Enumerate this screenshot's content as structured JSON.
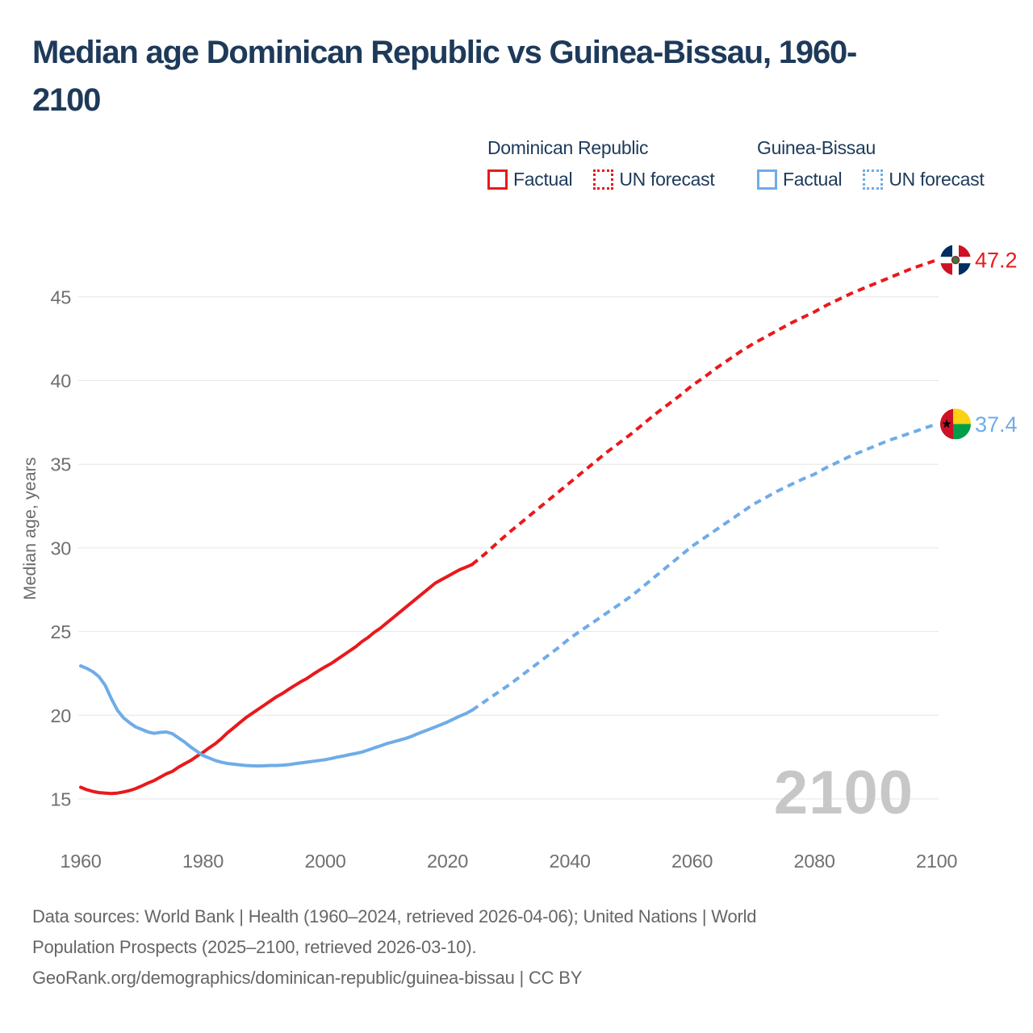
{
  "title": {
    "full": "Median age Dominican Republic vs Guinea-Bissau, 1960-2100",
    "lines": [
      "Median age Dominican Republic vs Guinea-Bissau, 1960-",
      "2100"
    ]
  },
  "legend": {
    "groups": [
      {
        "title": "Dominican Republic",
        "color": "#e8191c",
        "factual_label": "Factual",
        "forecast_label": "UN forecast"
      },
      {
        "title": "Guinea-Bissau",
        "color": "#6face8",
        "factual_label": "Factual",
        "forecast_label": "UN forecast"
      }
    ]
  },
  "chart_data": {
    "type": "line",
    "title": "Median age Dominican Republic vs Guinea-Bissau, 1960-2100",
    "xlabel": "",
    "ylabel": "Median age, years",
    "watermark": "2100",
    "xlim": [
      1960,
      2100
    ],
    "ylim": [
      15,
      45
    ],
    "xticks": [
      1960,
      1980,
      2000,
      2020,
      2040,
      2060,
      2080,
      2100
    ],
    "yticks": [
      15,
      20,
      25,
      30,
      35,
      40,
      45
    ],
    "grid": "horizontal",
    "legend_position": "top-right",
    "series": [
      {
        "id": "dominican-republic-factual",
        "name": "Dominican Republic — Factual",
        "color": "#e8191c",
        "dash": "solid",
        "points": [
          [
            1960,
            15.7
          ],
          [
            1961,
            15.55
          ],
          [
            1962,
            15.45
          ],
          [
            1963,
            15.38
          ],
          [
            1964,
            15.35
          ],
          [
            1965,
            15.33
          ],
          [
            1966,
            15.35
          ],
          [
            1967,
            15.42
          ],
          [
            1968,
            15.5
          ],
          [
            1969,
            15.62
          ],
          [
            1970,
            15.78
          ],
          [
            1971,
            15.95
          ],
          [
            1972,
            16.1
          ],
          [
            1973,
            16.3
          ],
          [
            1974,
            16.5
          ],
          [
            1975,
            16.65
          ],
          [
            1976,
            16.9
          ],
          [
            1977,
            17.1
          ],
          [
            1978,
            17.3
          ],
          [
            1979,
            17.55
          ],
          [
            1980,
            17.78
          ],
          [
            1981,
            18.05
          ],
          [
            1982,
            18.3
          ],
          [
            1983,
            18.6
          ],
          [
            1984,
            18.95
          ],
          [
            1985,
            19.25
          ],
          [
            1986,
            19.55
          ],
          [
            1987,
            19.85
          ],
          [
            1988,
            20.1
          ],
          [
            1989,
            20.35
          ],
          [
            1990,
            20.6
          ],
          [
            1991,
            20.85
          ],
          [
            1992,
            21.1
          ],
          [
            1993,
            21.3
          ],
          [
            1994,
            21.55
          ],
          [
            1995,
            21.78
          ],
          [
            1996,
            22
          ],
          [
            1997,
            22.2
          ],
          [
            1998,
            22.45
          ],
          [
            1999,
            22.68
          ],
          [
            2000,
            22.9
          ],
          [
            2001,
            23.1
          ],
          [
            2002,
            23.35
          ],
          [
            2003,
            23.6
          ],
          [
            2004,
            23.85
          ],
          [
            2005,
            24.1
          ],
          [
            2006,
            24.4
          ],
          [
            2007,
            24.65
          ],
          [
            2008,
            24.95
          ],
          [
            2009,
            25.2
          ],
          [
            2010,
            25.5
          ],
          [
            2011,
            25.8
          ],
          [
            2012,
            26.1
          ],
          [
            2013,
            26.4
          ],
          [
            2014,
            26.7
          ],
          [
            2015,
            27
          ],
          [
            2016,
            27.3
          ],
          [
            2017,
            27.6
          ],
          [
            2018,
            27.9
          ],
          [
            2019,
            28.1
          ],
          [
            2020,
            28.3
          ],
          [
            2021,
            28.5
          ],
          [
            2022,
            28.7
          ],
          [
            2023,
            28.85
          ],
          [
            2024,
            29
          ]
        ]
      },
      {
        "id": "dominican-republic-forecast",
        "name": "Dominican Republic — UN forecast",
        "color": "#e8191c",
        "dash": "dashed",
        "points": [
          [
            2024,
            29
          ],
          [
            2026,
            29.6
          ],
          [
            2028,
            30.25
          ],
          [
            2030,
            30.9
          ],
          [
            2032,
            31.5
          ],
          [
            2034,
            32.1
          ],
          [
            2036,
            32.7
          ],
          [
            2038,
            33.3
          ],
          [
            2040,
            33.9
          ],
          [
            2042,
            34.5
          ],
          [
            2044,
            35.1
          ],
          [
            2046,
            35.7
          ],
          [
            2048,
            36.25
          ],
          [
            2050,
            36.8
          ],
          [
            2052,
            37.4
          ],
          [
            2054,
            38
          ],
          [
            2056,
            38.55
          ],
          [
            2058,
            39.1
          ],
          [
            2060,
            39.7
          ],
          [
            2062,
            40.2
          ],
          [
            2064,
            40.75
          ],
          [
            2066,
            41.25
          ],
          [
            2068,
            41.75
          ],
          [
            2070,
            42.2
          ],
          [
            2072,
            42.6
          ],
          [
            2074,
            43
          ],
          [
            2076,
            43.4
          ],
          [
            2078,
            43.75
          ],
          [
            2080,
            44.1
          ],
          [
            2082,
            44.5
          ],
          [
            2084,
            44.85
          ],
          [
            2086,
            45.2
          ],
          [
            2088,
            45.5
          ],
          [
            2090,
            45.8
          ],
          [
            2092,
            46.1
          ],
          [
            2094,
            46.4
          ],
          [
            2096,
            46.7
          ],
          [
            2098,
            46.95
          ],
          [
            2100,
            47.2
          ]
        ]
      },
      {
        "id": "guinea-bissau-factual",
        "name": "Guinea-Bissau — Factual",
        "color": "#6face8",
        "dash": "solid",
        "points": [
          [
            1960,
            22.95
          ],
          [
            1961,
            22.8
          ],
          [
            1962,
            22.6
          ],
          [
            1963,
            22.3
          ],
          [
            1964,
            21.8
          ],
          [
            1965,
            21
          ],
          [
            1966,
            20.3
          ],
          [
            1967,
            19.85
          ],
          [
            1968,
            19.55
          ],
          [
            1969,
            19.3
          ],
          [
            1970,
            19.15
          ],
          [
            1971,
            19
          ],
          [
            1972,
            18.92
          ],
          [
            1973,
            18.98
          ],
          [
            1974,
            19
          ],
          [
            1975,
            18.9
          ],
          [
            1976,
            18.65
          ],
          [
            1977,
            18.4
          ],
          [
            1978,
            18.1
          ],
          [
            1979,
            17.85
          ],
          [
            1980,
            17.6
          ],
          [
            1981,
            17.45
          ],
          [
            1982,
            17.3
          ],
          [
            1983,
            17.2
          ],
          [
            1984,
            17.12
          ],
          [
            1985,
            17.08
          ],
          [
            1986,
            17.04
          ],
          [
            1987,
            17
          ],
          [
            1988,
            16.98
          ],
          [
            1989,
            16.97
          ],
          [
            1990,
            16.98
          ],
          [
            1991,
            17
          ],
          [
            1992,
            17
          ],
          [
            1993,
            17.02
          ],
          [
            1994,
            17.05
          ],
          [
            1995,
            17.1
          ],
          [
            1996,
            17.15
          ],
          [
            1997,
            17.2
          ],
          [
            1998,
            17.25
          ],
          [
            1999,
            17.3
          ],
          [
            2000,
            17.35
          ],
          [
            2001,
            17.42
          ],
          [
            2002,
            17.5
          ],
          [
            2003,
            17.57
          ],
          [
            2004,
            17.65
          ],
          [
            2005,
            17.72
          ],
          [
            2006,
            17.8
          ],
          [
            2007,
            17.92
          ],
          [
            2008,
            18.05
          ],
          [
            2009,
            18.17
          ],
          [
            2010,
            18.3
          ],
          [
            2011,
            18.4
          ],
          [
            2012,
            18.5
          ],
          [
            2013,
            18.6
          ],
          [
            2014,
            18.72
          ],
          [
            2015,
            18.88
          ],
          [
            2016,
            19.02
          ],
          [
            2017,
            19.16
          ],
          [
            2018,
            19.3
          ],
          [
            2019,
            19.45
          ],
          [
            2020,
            19.6
          ],
          [
            2021,
            19.78
          ],
          [
            2022,
            19.95
          ],
          [
            2023,
            20.1
          ],
          [
            2024,
            20.3
          ]
        ]
      },
      {
        "id": "guinea-bissau-forecast",
        "name": "Guinea-Bissau — UN forecast",
        "color": "#6face8",
        "dash": "dashed",
        "points": [
          [
            2024,
            20.3
          ],
          [
            2026,
            20.8
          ],
          [
            2028,
            21.3
          ],
          [
            2030,
            21.8
          ],
          [
            2032,
            22.35
          ],
          [
            2034,
            22.9
          ],
          [
            2036,
            23.45
          ],
          [
            2038,
            24
          ],
          [
            2040,
            24.6
          ],
          [
            2042,
            25.1
          ],
          [
            2044,
            25.6
          ],
          [
            2046,
            26.1
          ],
          [
            2048,
            26.6
          ],
          [
            2050,
            27.1
          ],
          [
            2052,
            27.7
          ],
          [
            2054,
            28.3
          ],
          [
            2056,
            28.9
          ],
          [
            2058,
            29.5
          ],
          [
            2060,
            30.1
          ],
          [
            2062,
            30.6
          ],
          [
            2064,
            31.1
          ],
          [
            2066,
            31.6
          ],
          [
            2068,
            32.1
          ],
          [
            2070,
            32.6
          ],
          [
            2072,
            33
          ],
          [
            2074,
            33.4
          ],
          [
            2076,
            33.75
          ],
          [
            2078,
            34.1
          ],
          [
            2080,
            34.4
          ],
          [
            2082,
            34.8
          ],
          [
            2084,
            35.15
          ],
          [
            2086,
            35.5
          ],
          [
            2088,
            35.8
          ],
          [
            2090,
            36.1
          ],
          [
            2092,
            36.4
          ],
          [
            2094,
            36.65
          ],
          [
            2096,
            36.9
          ],
          [
            2098,
            37.15
          ],
          [
            2100,
            37.4
          ]
        ]
      }
    ],
    "end_labels": [
      {
        "series": "Dominican Republic",
        "display": "47.2",
        "value": 47.2,
        "color": "#e8191c",
        "flag_id": "flag-dr",
        "label_id": "label-dr"
      },
      {
        "series": "Guinea-Bissau",
        "display": "37.4",
        "value": 37.4,
        "color": "#6face8",
        "flag_id": "flag-gb",
        "label_id": "label-gb"
      }
    ]
  },
  "footer": {
    "lines": [
      "Data sources: World Bank | Health (1960–2024, retrieved 2026-04-06); United Nations | World",
      "Population Prospects (2025–2100, retrieved 2026-03-10).",
      "GeoRank.org/demographics/dominican-republic/guinea-bissau | CC BY"
    ]
  },
  "colors": {
    "dominican_republic": "#e8191c",
    "guinea_bissau": "#6face8",
    "title_text": "#1e3a5a",
    "axis_text": "#707070",
    "gridline": "#e6e6e6",
    "watermark": "#c7c7c7",
    "footer_text": "#666666"
  }
}
